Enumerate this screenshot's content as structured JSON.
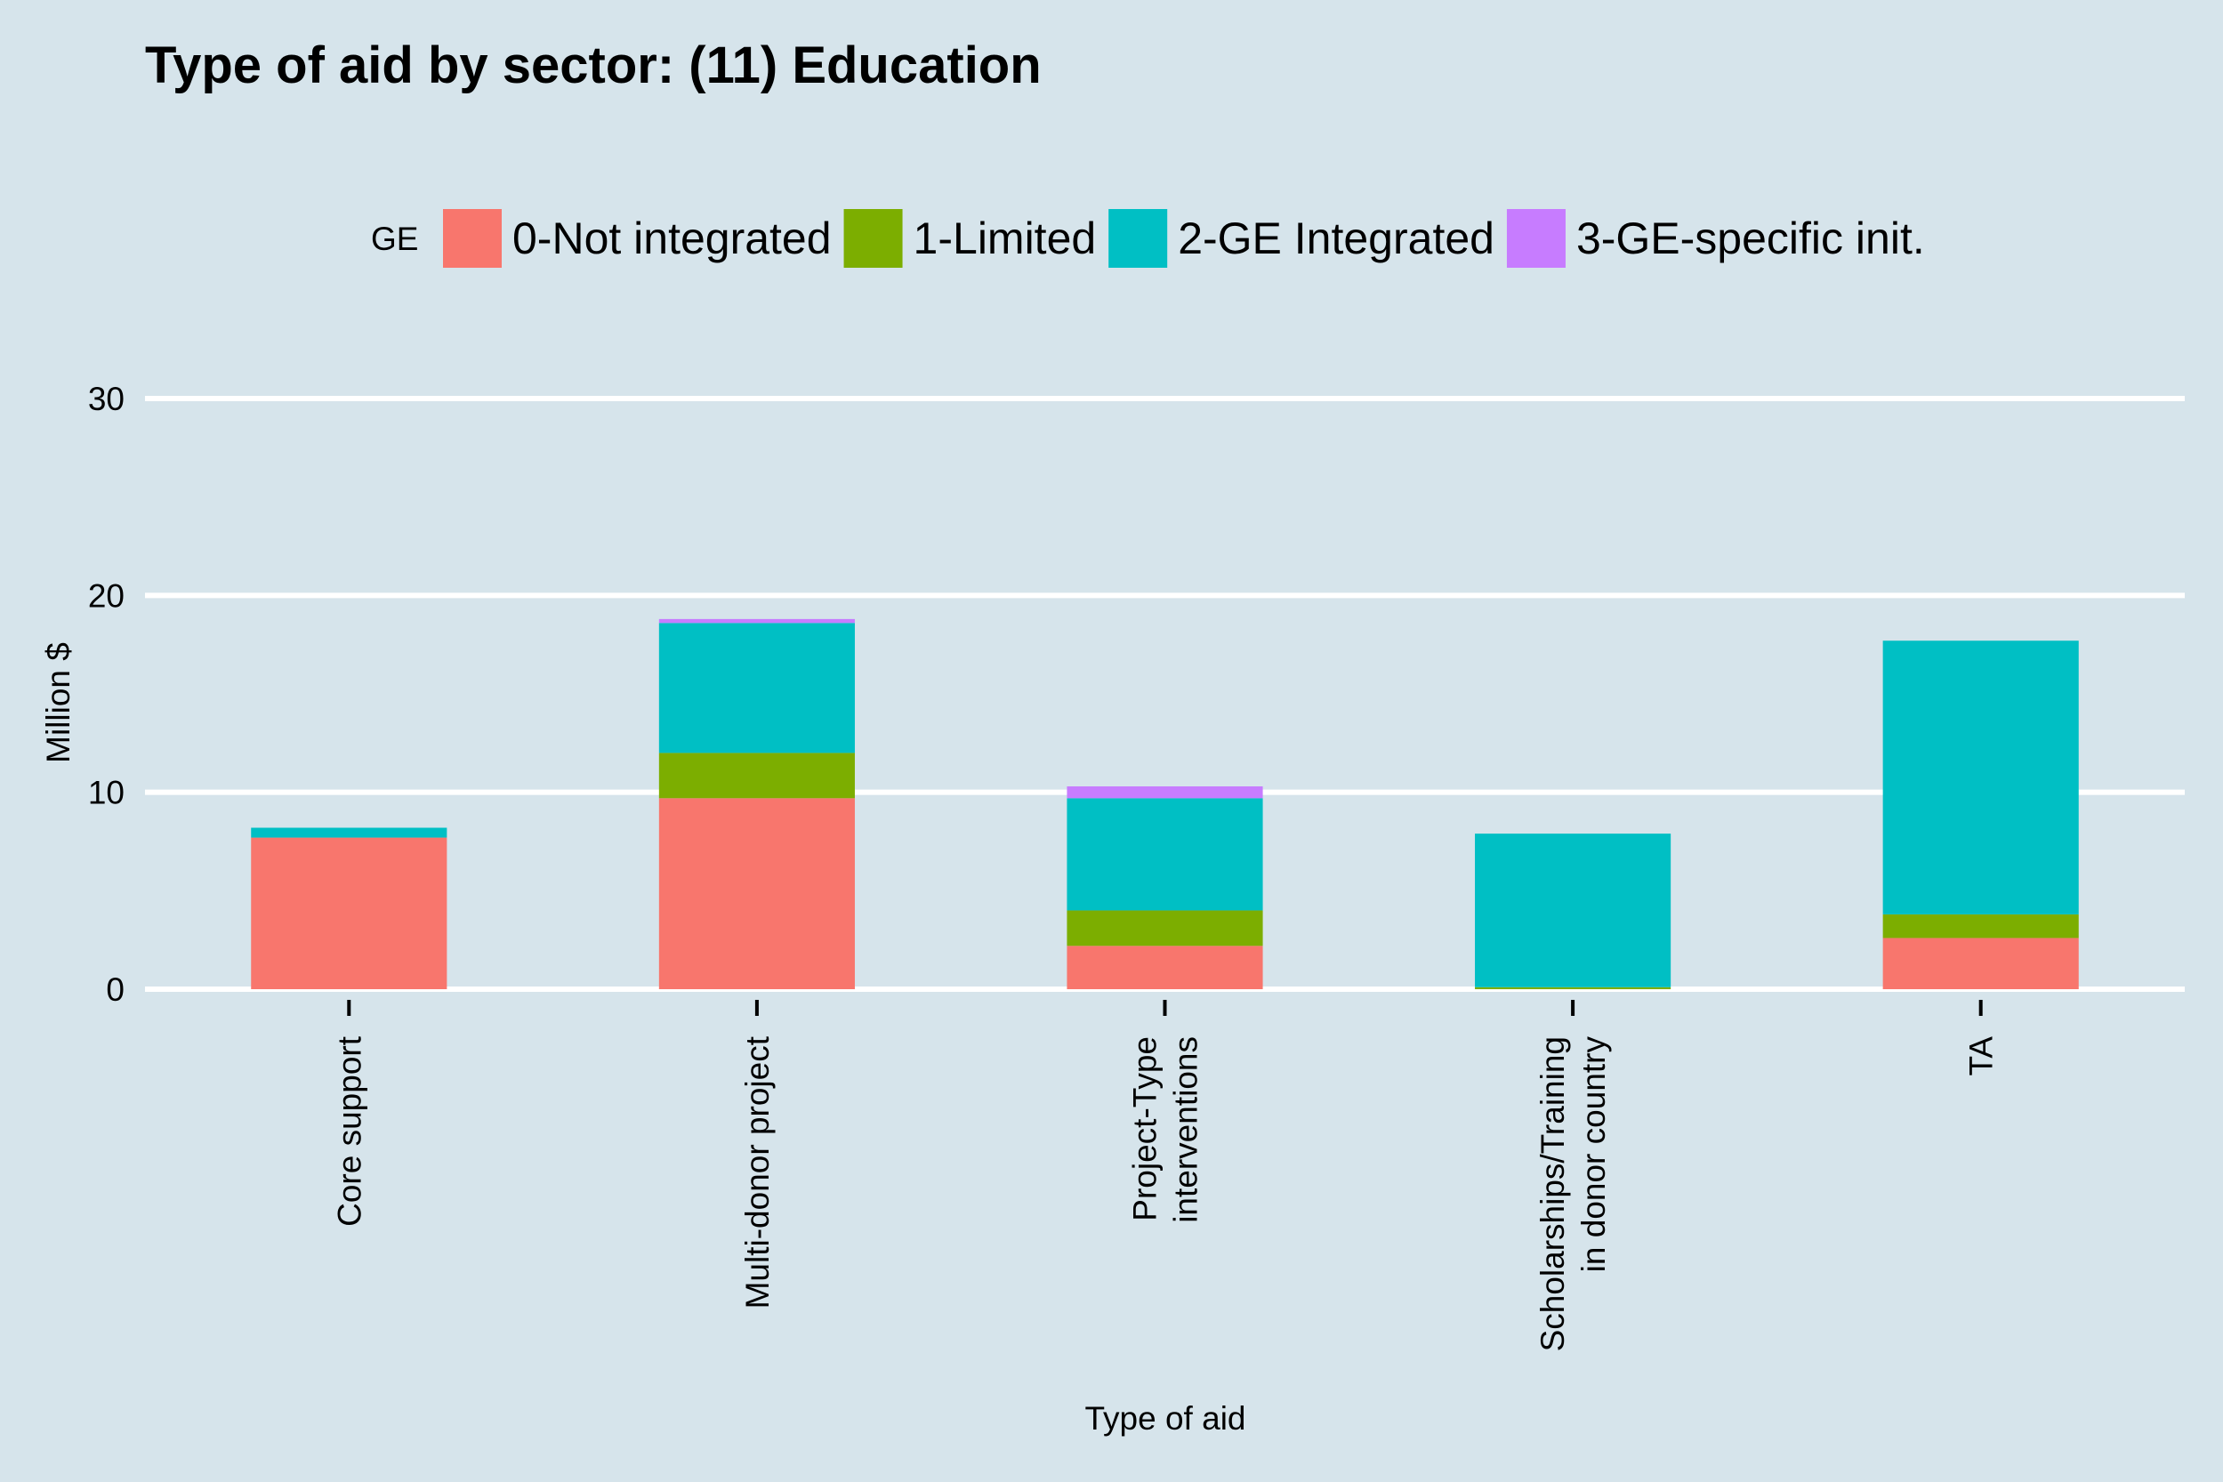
{
  "chart_data": {
    "type": "bar",
    "stacked": true,
    "title": "Type of aid by sector:  (11) Education",
    "xlabel": "Type of aid",
    "ylabel": "Million $",
    "ylim": [
      0,
      30
    ],
    "yticks": [
      0,
      10,
      20,
      30
    ],
    "grid": true,
    "legend_placement": "top",
    "legend_title": "GE",
    "categories": [
      [
        "Core support"
      ],
      [
        "Multi-donor project"
      ],
      [
        "Project-Type",
        "interventions"
      ],
      [
        "Scholarships/Training",
        "in donor country"
      ],
      [
        "TA"
      ]
    ],
    "series": [
      {
        "name": "0-Not integrated",
        "color": "#f8766d",
        "values": [
          7.7,
          9.7,
          2.2,
          0.0,
          2.6
        ]
      },
      {
        "name": "1-Limited",
        "color": "#7cae00",
        "values": [
          0.0,
          2.3,
          1.8,
          0.1,
          1.2
        ]
      },
      {
        "name": "2-GE Integrated",
        "color": "#00bfc4",
        "values": [
          0.5,
          6.6,
          5.7,
          7.8,
          13.9
        ]
      },
      {
        "name": "3-GE-specific init.",
        "color": "#c77cff",
        "values": [
          0.0,
          0.2,
          0.6,
          0.0,
          0.0
        ]
      }
    ]
  },
  "colors": {
    "background": "#d6e4eb",
    "grid": "#ffffff",
    "text": "#000000"
  }
}
